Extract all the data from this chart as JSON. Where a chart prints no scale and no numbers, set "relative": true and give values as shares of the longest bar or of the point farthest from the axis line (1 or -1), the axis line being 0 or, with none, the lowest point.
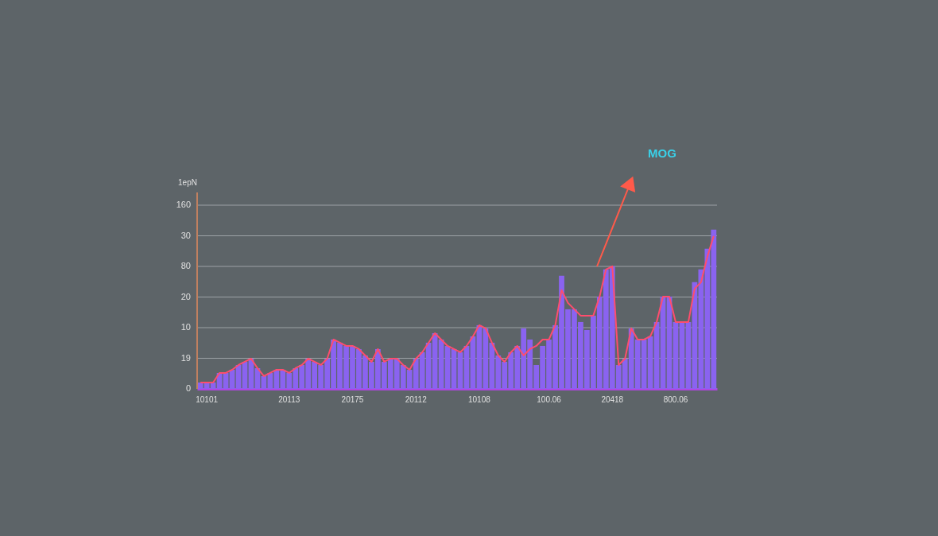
{
  "chart_data": {
    "type": "bar",
    "relative": true,
    "categories": [
      null,
      "10101",
      null,
      null,
      null,
      null,
      null,
      null,
      null,
      null,
      null,
      null,
      null,
      null,
      "20113",
      null,
      null,
      null,
      null,
      null,
      null,
      null,
      null,
      null,
      "20175",
      null,
      null,
      null,
      null,
      null,
      null,
      null,
      null,
      null,
      "20112",
      null,
      null,
      null,
      null,
      null,
      null,
      null,
      null,
      null,
      "10108",
      null,
      null,
      null,
      null,
      null,
      null,
      null,
      null,
      null,
      null,
      "100.06",
      null,
      null,
      null,
      null,
      null,
      null,
      null,
      null,
      null,
      "20418",
      null,
      null,
      null,
      null,
      null,
      null,
      null,
      null,
      null,
      "800.06",
      null,
      null,
      null,
      null,
      null,
      null
    ],
    "series": [
      {
        "color": "#8a63f0",
        "values": [
          0.04,
          0.04,
          0.04,
          0.1,
          0.1,
          0.12,
          0.15,
          0.17,
          0.19,
          0.13,
          0.08,
          0.1,
          0.12,
          0.12,
          0.1,
          0.13,
          0.15,
          0.19,
          0.17,
          0.15,
          0.19,
          0.31,
          0.29,
          0.27,
          0.27,
          0.25,
          0.21,
          0.17,
          0.25,
          0.17,
          0.19,
          0.19,
          0.15,
          0.12,
          0.19,
          0.23,
          0.29,
          0.35,
          0.31,
          0.27,
          0.25,
          0.23,
          0.27,
          0.33,
          0.4,
          0.38,
          0.29,
          0.21,
          0.17,
          0.23,
          0.27,
          0.38,
          0.31,
          0.15,
          0.27,
          0.31,
          0.4,
          0.71,
          0.5,
          0.5,
          0.42,
          0.37,
          0.46,
          0.58,
          0.75,
          0.77,
          0.15,
          0.19,
          0.38,
          0.31,
          0.31,
          0.33,
          0.42,
          0.58,
          0.58,
          0.42,
          0.42,
          0.42,
          0.67,
          0.75,
          0.88,
          1
        ]
      },
      {
        "type": "line",
        "color": "#ff4d6d",
        "values": [
          0.04,
          0.04,
          0.04,
          0.1,
          0.1,
          0.12,
          0.15,
          0.17,
          0.19,
          0.13,
          0.08,
          0.1,
          0.12,
          0.12,
          0.1,
          0.13,
          0.15,
          0.19,
          0.17,
          0.15,
          0.19,
          0.31,
          0.29,
          0.27,
          0.27,
          0.25,
          0.21,
          0.17,
          0.25,
          0.17,
          0.19,
          0.19,
          0.15,
          0.12,
          0.19,
          0.23,
          0.29,
          0.35,
          0.31,
          0.27,
          0.25,
          0.23,
          0.27,
          0.33,
          0.4,
          0.38,
          0.29,
          0.21,
          0.17,
          0.23,
          0.27,
          0.21,
          0.25,
          0.27,
          0.31,
          0.31,
          0.4,
          0.62,
          0.54,
          0.5,
          0.46,
          0.46,
          0.46,
          0.58,
          0.75,
          0.77,
          0.15,
          0.19,
          0.38,
          0.31,
          0.31,
          0.33,
          0.42,
          0.58,
          0.58,
          0.42,
          0.42,
          0.42,
          0.63,
          0.67,
          0.83,
          0.96
        ]
      }
    ],
    "grid": "y",
    "annotations": [
      "1epN",
      "0",
      "19",
      "10",
      "20",
      "80",
      "30",
      "160",
      "MOG"
    ]
  }
}
